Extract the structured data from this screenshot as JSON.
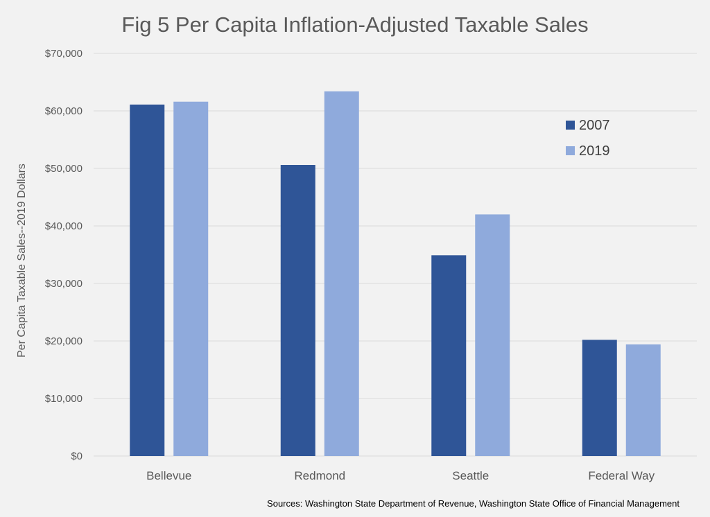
{
  "chart_data": {
    "type": "bar",
    "title": "Fig 5 Per Capita Inflation-Adjusted Taxable Sales",
    "xlabel": "",
    "ylabel": "Per Capita Taxable Sales--2019 Dollars",
    "categories": [
      "Bellevue",
      "Redmond",
      "Seattle",
      "Federal Way"
    ],
    "series": [
      {
        "name": "2007",
        "color": "#2f5597",
        "values": [
          61100,
          50600,
          34900,
          20200
        ]
      },
      {
        "name": "2019",
        "color": "#8faadc",
        "values": [
          61600,
          63400,
          42000,
          19400
        ]
      }
    ],
    "ylim": [
      0,
      70000
    ],
    "yticks": [
      {
        "value": 0,
        "label": "$0"
      },
      {
        "value": 10000,
        "label": "$10,000"
      },
      {
        "value": 20000,
        "label": "$20,000"
      },
      {
        "value": 30000,
        "label": "$30,000"
      },
      {
        "value": 40000,
        "label": "$40,000"
      },
      {
        "value": 50000,
        "label": "$50,000"
      },
      {
        "value": 60000,
        "label": "$60,000"
      },
      {
        "value": 70000,
        "label": "$70,000"
      }
    ],
    "grid": true,
    "legend_position": "top-right",
    "source_note": "Sources: Washington State Department of Revenue, Washington State Office of Financial Management"
  },
  "colors": {
    "background": "#f2f2f2",
    "gridline": "#d9d9d9",
    "text": "#595959"
  }
}
